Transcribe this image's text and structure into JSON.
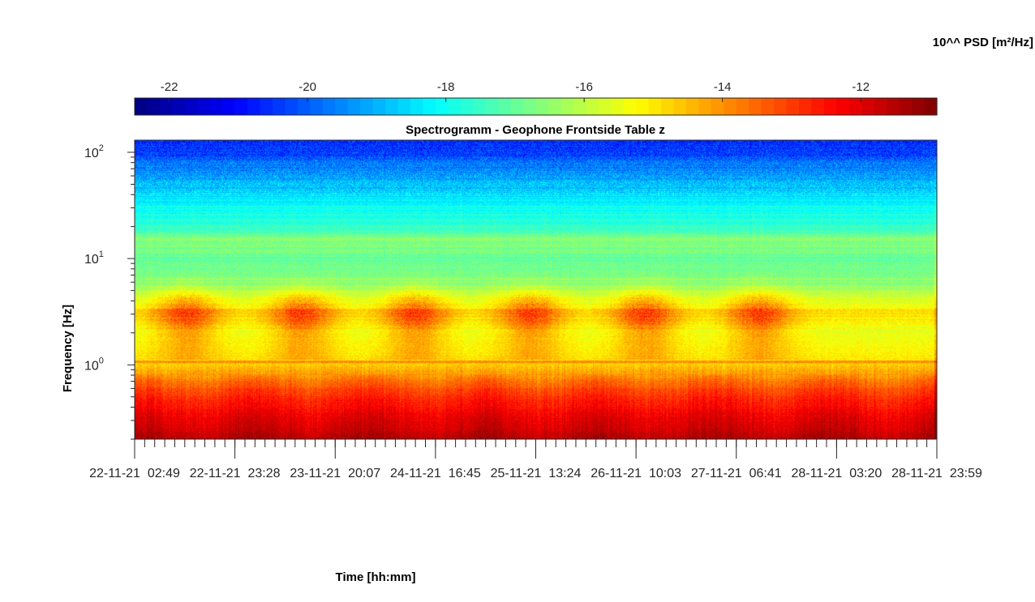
{
  "chart_data": {
    "type": "heatmap",
    "title": "Spectrogramm - Geophone Frontside Table z",
    "xlabel": "Time [hh:mm]",
    "ylabel": "Frequency [Hz]",
    "colorbar_label": "10^^ PSD [m²/Hz]",
    "x_tick_labels": [
      "22-11-21  02:49",
      "22-11-21  23:28",
      "23-11-21  20:07",
      "24-11-21  16:45",
      "25-11-21  13:24",
      "26-11-21  10:03",
      "27-11-21  06:41",
      "28-11-21  03:20",
      "28-11-21  23:59"
    ],
    "y_scale": "log",
    "y_range_hz": [
      0.2,
      130
    ],
    "y_ticks": [
      {
        "base": "10",
        "exp": "0"
      },
      {
        "base": "10",
        "exp": "1"
      },
      {
        "base": "10",
        "exp": "2"
      }
    ],
    "colorbar": {
      "range": [
        -22.5,
        -10.9
      ],
      "tick_values": [
        -22,
        -20,
        -18,
        -16,
        -14,
        -12
      ],
      "tick_labels": [
        "-22",
        "-20",
        "-18",
        "-16",
        "-14",
        "-12"
      ],
      "colormap": "jet",
      "stops": [
        "#00008f",
        "#0000ff",
        "#00ffff",
        "#ffff00",
        "#ff0000",
        "#800000"
      ]
    },
    "psd_log10_by_frequency": {
      "frequency_hz": [
        0.2,
        0.3,
        0.5,
        0.7,
        0.9,
        1.0,
        1.1,
        2.0,
        3.0,
        4.0,
        6.0,
        8.0,
        10.0,
        15.0,
        20.0,
        35.0,
        60.0,
        100.0,
        130.0
      ],
      "log10_psd": [
        -11.5,
        -12.0,
        -12.8,
        -13.6,
        -14.4,
        -14.6,
        -15.0,
        -15.5,
        -14.8,
        -15.6,
        -16.6,
        -16.9,
        -17.0,
        -16.6,
        -17.6,
        -18.3,
        -19.2,
        -20.3,
        -20.6
      ]
    },
    "activity_periods": {
      "description_free": true,
      "band_hz": [
        2.0,
        4.0
      ],
      "day_centers_index": [
        0.45,
        1.45,
        2.45,
        3.45,
        4.45,
        5.45
      ],
      "peak_log10_psd": -13.3
    }
  }
}
